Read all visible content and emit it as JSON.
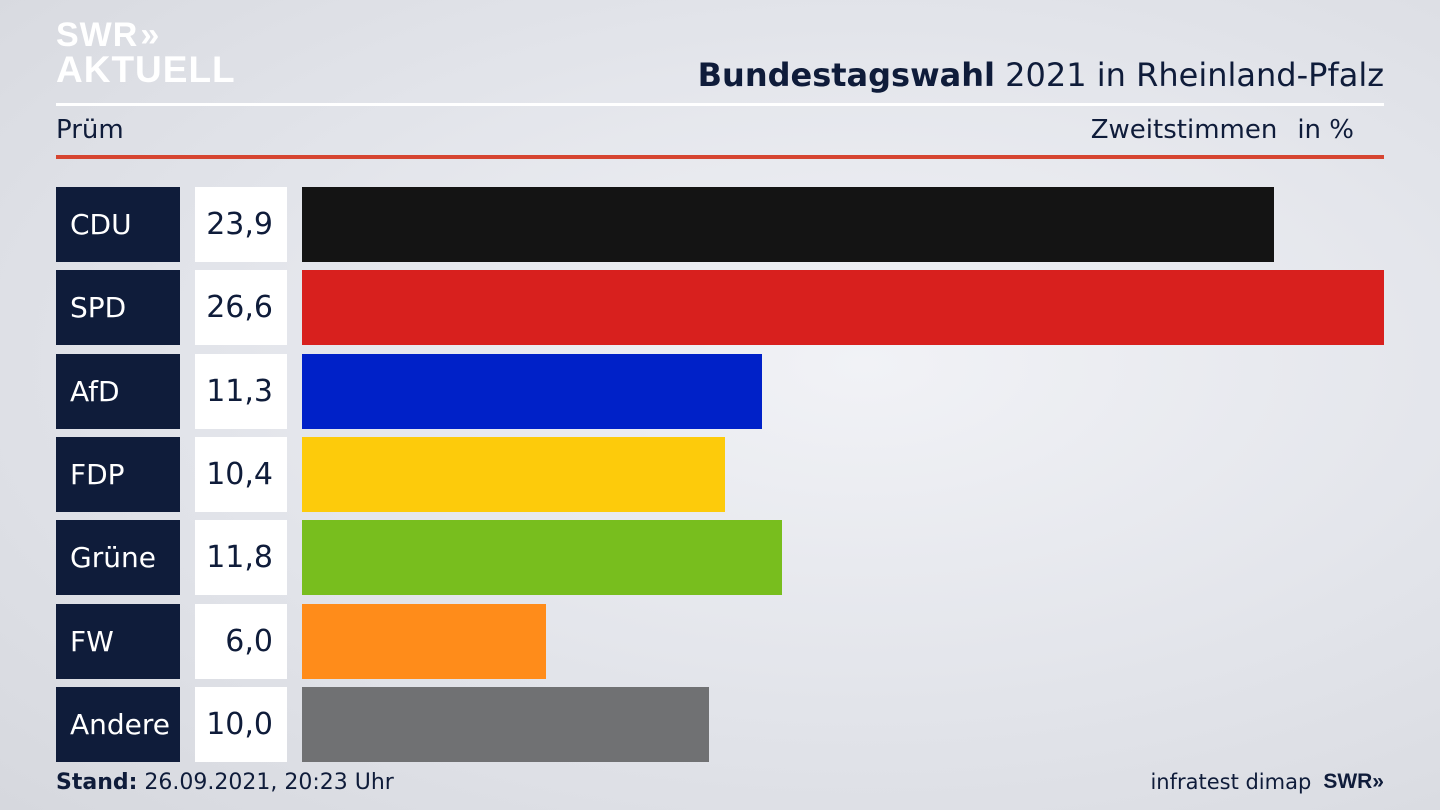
{
  "logo": {
    "line1": "SWR",
    "chevrons": "»",
    "line2": "AKTUELL"
  },
  "title": {
    "bold": "Bundestagswahl",
    "rest": " 2021 in Rheinland-Pfalz"
  },
  "subtitle": {
    "place": "Prüm",
    "metric": "Zweitstimmen",
    "unit": "in %"
  },
  "footer": {
    "stand_label": "Stand:",
    "stand_value": " 26.09.2021, 20:23 Uhr",
    "source": "infratest dimap",
    "brand": "SWR»"
  },
  "chart_data": {
    "type": "bar",
    "orientation": "horizontal",
    "categories": [
      "CDU",
      "SPD",
      "AfD",
      "FDP",
      "Grüne",
      "FW",
      "Andere"
    ],
    "values": [
      23.9,
      26.6,
      11.3,
      10.4,
      11.8,
      6.0,
      10.0
    ],
    "value_labels": [
      "23,9",
      "26,6",
      "11,3",
      "10,4",
      "11,8",
      "6,0",
      "10,0"
    ],
    "colors": [
      "#141414",
      "#d8201e",
      "#0021c8",
      "#fdcb0b",
      "#78be1e",
      "#ff8c1a",
      "#707173"
    ],
    "xlim": [
      0,
      26.6
    ]
  }
}
